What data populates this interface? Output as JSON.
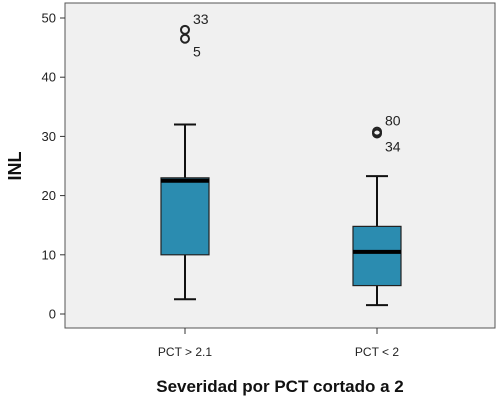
{
  "chart_data": {
    "type": "boxplot",
    "xlabel": "Severidad por PCT cortado a 2",
    "ylabel": "INL",
    "ylim": [
      0,
      52
    ],
    "yticks": [
      0,
      10,
      20,
      30,
      40,
      50
    ],
    "grid": false,
    "legend": "none",
    "box_color": "#2b8cb0",
    "plot_background": "#f0f0f0",
    "categories": [
      "PCT > 2.1",
      "PCT < 2"
    ],
    "boxes": [
      {
        "category": "PCT > 2.1",
        "whisker_low": 2.5,
        "q1": 10,
        "median": 22.5,
        "q3": 23,
        "whisker_high": 32,
        "outliers": [
          {
            "value": 48,
            "label": "33"
          },
          {
            "value": 46.5,
            "label": "5"
          }
        ]
      },
      {
        "category": "PCT < 2",
        "whisker_low": 1.5,
        "q1": 4.8,
        "median": 10.5,
        "q3": 14.8,
        "whisker_high": 23.3,
        "outliers": [
          {
            "value": 30.8,
            "label": "80"
          },
          {
            "value": 30.5,
            "label": "34"
          }
        ]
      }
    ]
  }
}
